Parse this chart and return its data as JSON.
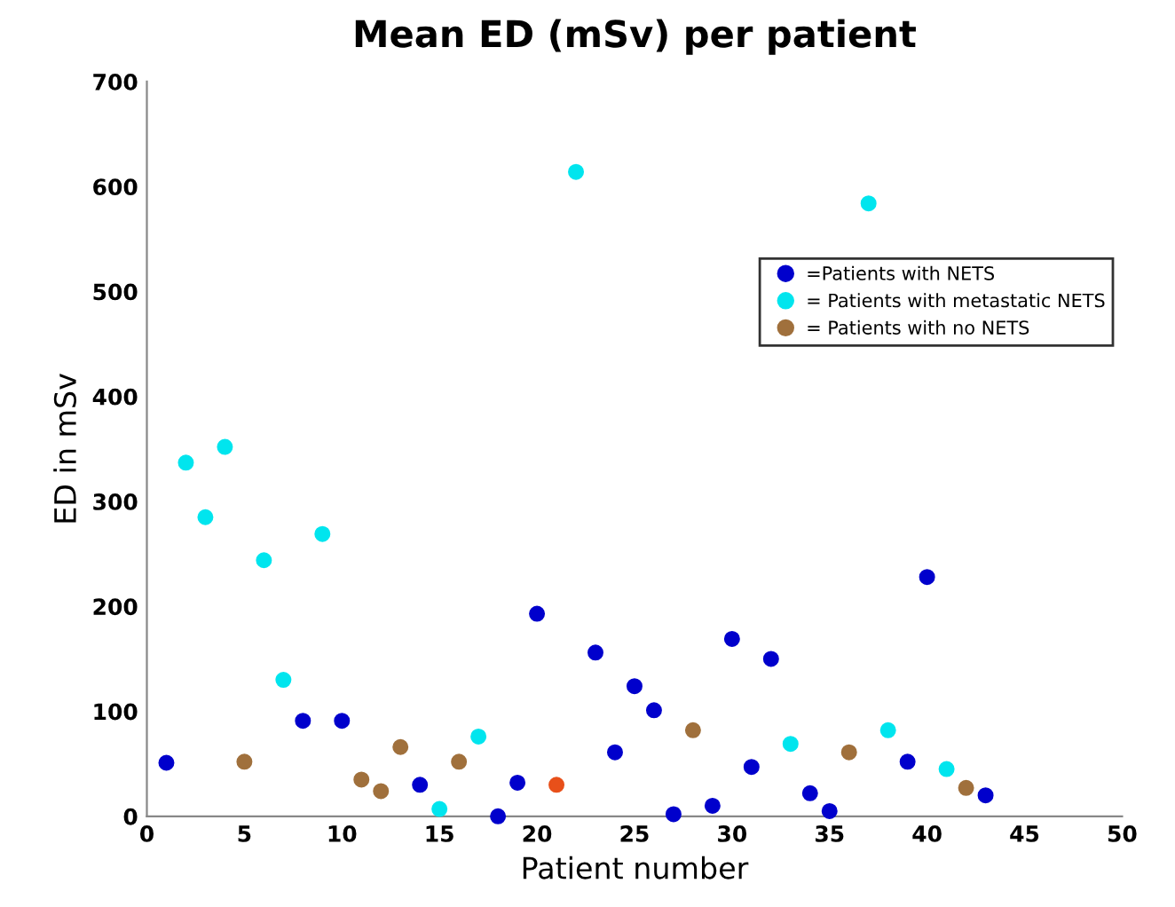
{
  "chart_data": {
    "type": "scatter",
    "title": "Mean ED (mSv) per patient",
    "xlabel": "Patient number",
    "ylabel": "ED in mSv",
    "xlim": [
      0,
      50
    ],
    "xticks": [
      0,
      5,
      10,
      15,
      20,
      25,
      30,
      35,
      40,
      45,
      50
    ],
    "ylim": [
      0,
      700
    ],
    "yticks": [
      0,
      100,
      200,
      300,
      400,
      500,
      600,
      700
    ],
    "grid": false,
    "legend": "right",
    "marker": "circle",
    "series": [
      {
        "name": "=Patients with NETS",
        "color": "#0000cc",
        "x": [
          1,
          8,
          10,
          14,
          18,
          19,
          20,
          23,
          24,
          25,
          26,
          27,
          29,
          30,
          31,
          32,
          34,
          35,
          39,
          40,
          43
        ],
        "values": [
          51,
          91,
          91,
          30,
          0,
          32,
          193,
          156,
          61,
          124,
          101,
          2,
          10,
          169,
          47,
          150,
          22,
          5,
          52,
          228,
          20
        ]
      },
      {
        "name": "= Patients with metastatic NETS",
        "color": "#00e5ee",
        "x": [
          2,
          3,
          4,
          6,
          7,
          9,
          15,
          17,
          22,
          33,
          37,
          38,
          41
        ],
        "values": [
          337,
          285,
          352,
          244,
          130,
          269,
          7,
          76,
          614,
          69,
          584,
          82,
          45
        ]
      },
      {
        "name": "= Patients with no NETS",
        "color": "#a0703c",
        "x": [
          5,
          11,
          12,
          13,
          16,
          28,
          36,
          42
        ],
        "values": [
          52,
          35,
          24,
          66,
          52,
          82,
          61,
          27
        ]
      },
      {
        "color": "#e8501a",
        "x": [
          21
        ],
        "values": [
          30
        ]
      }
    ]
  }
}
